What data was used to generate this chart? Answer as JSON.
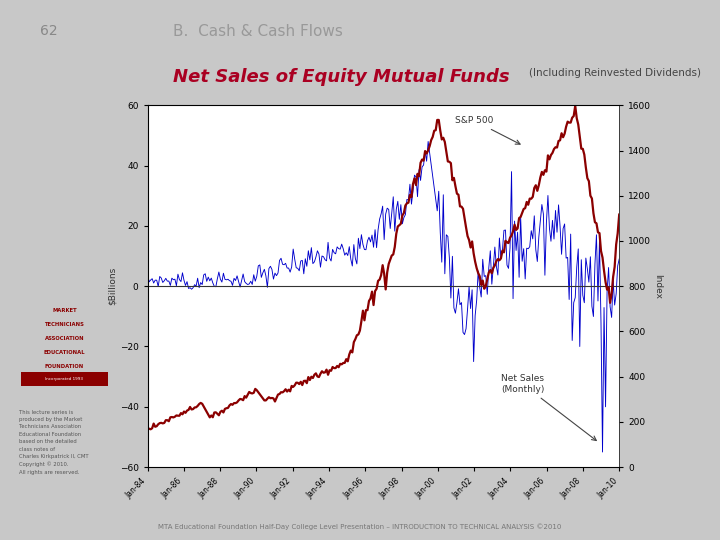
{
  "page_number": "62",
  "section_title": "B.  Cash & Cash Flows",
  "chart_title_main": "Net Sales of Equity Mutual Funds",
  "chart_title_sub": "(Including Reinvested Dividends)",
  "ylabel_left": "$Billions",
  "ylabel_right": "Index",
  "ylim_left": [
    -60,
    60
  ],
  "ylim_right": [
    0,
    1600
  ],
  "x_tick_labels": [
    "Jan-84",
    "Jan-86",
    "Jan-88",
    "Jan-90",
    "Jan-92",
    "Jan-94",
    "Jan-96",
    "Jan-98",
    "Jan-00",
    "Jan-02",
    "Jan-04",
    "Jan-06",
    "Jan-08",
    "Jan-10"
  ],
  "sp500_color": "#8B0000",
  "net_sales_color": "#0000CC",
  "background_color": "#C8C8C8",
  "chart_bg_color": "#FFFFFF",
  "annotation_sp500": "S&P 500",
  "annotation_netsales": "Net Sales\n(Monthly)",
  "footer_text": "MTA Educational Foundation Half-Day College Level Presentation – INTRODUCTION TO TECHNICAL ANALYSIS ©2010",
  "title_color_main": "#AA0022",
  "title_color_sub": "#444444",
  "section_color": "#999999",
  "logo_colors": {
    "text": "#8B0000",
    "bar": "#8B0000",
    "bar_text": "#FFFFFF"
  }
}
